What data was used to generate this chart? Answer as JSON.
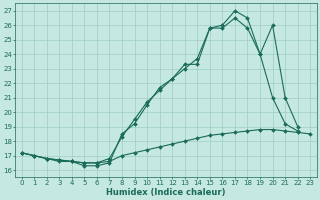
{
  "xlabel": "Humidex (Indice chaleur)",
  "bg_color": "#c5e8e0",
  "grid_color": "#9ecec5",
  "line_color": "#1a6b5a",
  "xlim": [
    -0.5,
    23.5
  ],
  "ylim": [
    15.5,
    27.5
  ],
  "yticks": [
    16,
    17,
    18,
    19,
    20,
    21,
    22,
    23,
    24,
    25,
    26,
    27
  ],
  "xticks": [
    0,
    1,
    2,
    3,
    4,
    5,
    6,
    7,
    8,
    9,
    10,
    11,
    12,
    13,
    14,
    15,
    16,
    17,
    18,
    19,
    20,
    21,
    22,
    23
  ],
  "line1_y": [
    17.2,
    17.0,
    16.8,
    16.6,
    16.6,
    16.3,
    16.3,
    16.5,
    18.5,
    19.2,
    20.5,
    21.7,
    22.3,
    23.3,
    23.3,
    25.8,
    26.0,
    27.0,
    26.5,
    24.0,
    21.0,
    19.2,
    18.7,
    null
  ],
  "line2_y": [
    17.2,
    17.0,
    16.8,
    16.7,
    16.6,
    16.5,
    16.5,
    16.8,
    18.3,
    19.5,
    20.7,
    21.5,
    22.3,
    23.0,
    23.7,
    25.8,
    25.8,
    26.5,
    25.8,
    24.0,
    26.0,
    21.0,
    19.0,
    null
  ],
  "line3_y": [
    17.2,
    17.0,
    16.8,
    16.7,
    16.6,
    16.5,
    16.5,
    16.6,
    17.0,
    17.2,
    17.4,
    17.6,
    17.8,
    18.0,
    18.2,
    18.4,
    18.5,
    18.6,
    18.7,
    18.8,
    18.8,
    18.7,
    18.6,
    18.5
  ],
  "tick_fontsize": 5,
  "xlabel_fontsize": 6
}
